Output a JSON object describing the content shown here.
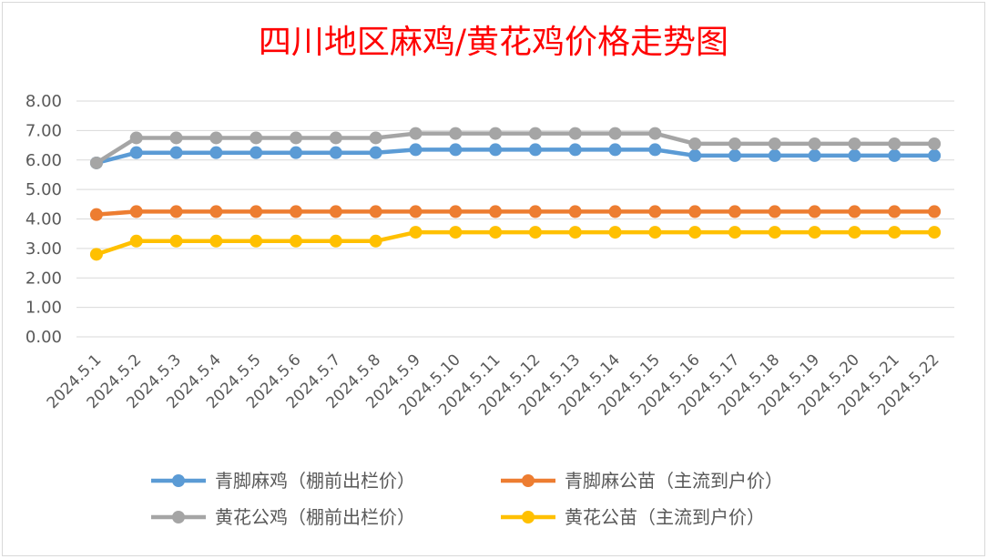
{
  "chart_data": {
    "type": "line",
    "title": "四川地区麻鸡/黄花鸡价格走势图",
    "title_color": "#ff0000",
    "ylim": [
      0,
      8
    ],
    "yticks": [
      "0.00",
      "1.00",
      "2.00",
      "3.00",
      "4.00",
      "5.00",
      "6.00",
      "7.00",
      "8.00"
    ],
    "grid": true,
    "legend_position": "bottom",
    "categories": [
      "2024.5.1",
      "2024.5.2",
      "2024.5.3",
      "2024.5.4",
      "2024.5.5",
      "2024.5.6",
      "2024.5.7",
      "2024.5.8",
      "2024.5.9",
      "2024.5.10",
      "2024.5.11",
      "2024.5.12",
      "2024.5.13",
      "2024.5.14",
      "2024.5.15",
      "2024.5.16",
      "2024.5.17",
      "2024.5.18",
      "2024.5.19",
      "2024.5.20",
      "2024.5.21",
      "2024.5.22"
    ],
    "series": [
      {
        "name": "青脚麻鸡（棚前出栏价）",
        "color": "#5b9bd5",
        "values": [
          5.9,
          6.25,
          6.25,
          6.25,
          6.25,
          6.25,
          6.25,
          6.25,
          6.35,
          6.35,
          6.35,
          6.35,
          6.35,
          6.35,
          6.35,
          6.15,
          6.15,
          6.15,
          6.15,
          6.15,
          6.15,
          6.15
        ]
      },
      {
        "name": "青脚麻公苗（主流到户价）",
        "color": "#ed7d31",
        "values": [
          4.15,
          4.25,
          4.25,
          4.25,
          4.25,
          4.25,
          4.25,
          4.25,
          4.25,
          4.25,
          4.25,
          4.25,
          4.25,
          4.25,
          4.25,
          4.25,
          4.25,
          4.25,
          4.25,
          4.25,
          4.25,
          4.25
        ]
      },
      {
        "name": "黄花公鸡（棚前出栏价）",
        "color": "#a5a5a5",
        "values": [
          5.9,
          6.75,
          6.75,
          6.75,
          6.75,
          6.75,
          6.75,
          6.75,
          6.9,
          6.9,
          6.9,
          6.9,
          6.9,
          6.9,
          6.9,
          6.55,
          6.55,
          6.55,
          6.55,
          6.55,
          6.55,
          6.55
        ]
      },
      {
        "name": "黄花公苗（主流到户价）",
        "color": "#ffc000",
        "values": [
          2.8,
          3.25,
          3.25,
          3.25,
          3.25,
          3.25,
          3.25,
          3.25,
          3.55,
          3.55,
          3.55,
          3.55,
          3.55,
          3.55,
          3.55,
          3.55,
          3.55,
          3.55,
          3.55,
          3.55,
          3.55,
          3.55
        ]
      }
    ],
    "legend_order": [
      0,
      1,
      2,
      3
    ]
  }
}
